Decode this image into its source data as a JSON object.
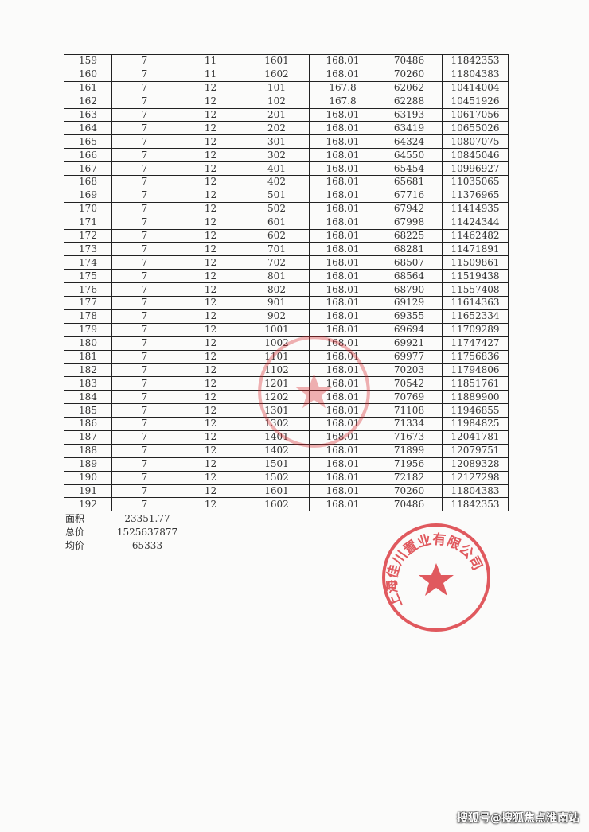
{
  "table": {
    "rows": [
      [
        "159",
        "7",
        "11",
        "1601",
        "168.01",
        "70486",
        "11842353"
      ],
      [
        "160",
        "7",
        "11",
        "1602",
        "168.01",
        "70260",
        "11804383"
      ],
      [
        "161",
        "7",
        "12",
        "101",
        "167.8",
        "62062",
        "10414004"
      ],
      [
        "162",
        "7",
        "12",
        "102",
        "167.8",
        "62288",
        "10451926"
      ],
      [
        "163",
        "7",
        "12",
        "201",
        "168.01",
        "63193",
        "10617056"
      ],
      [
        "164",
        "7",
        "12",
        "202",
        "168.01",
        "63419",
        "10655026"
      ],
      [
        "165",
        "7",
        "12",
        "301",
        "168.01",
        "64324",
        "10807075"
      ],
      [
        "166",
        "7",
        "12",
        "302",
        "168.01",
        "64550",
        "10845046"
      ],
      [
        "167",
        "7",
        "12",
        "401",
        "168.01",
        "65454",
        "10996927"
      ],
      [
        "168",
        "7",
        "12",
        "402",
        "168.01",
        "65681",
        "11035065"
      ],
      [
        "169",
        "7",
        "12",
        "501",
        "168.01",
        "67716",
        "11376965"
      ],
      [
        "170",
        "7",
        "12",
        "502",
        "168.01",
        "67942",
        "11414935"
      ],
      [
        "171",
        "7",
        "12",
        "601",
        "168.01",
        "67998",
        "11424344"
      ],
      [
        "172",
        "7",
        "12",
        "602",
        "168.01",
        "68225",
        "11462482"
      ],
      [
        "173",
        "7",
        "12",
        "701",
        "168.01",
        "68281",
        "11471891"
      ],
      [
        "174",
        "7",
        "12",
        "702",
        "168.01",
        "68507",
        "11509861"
      ],
      [
        "175",
        "7",
        "12",
        "801",
        "168.01",
        "68564",
        "11519438"
      ],
      [
        "176",
        "7",
        "12",
        "802",
        "168.01",
        "68790",
        "11557408"
      ],
      [
        "177",
        "7",
        "12",
        "901",
        "168.01",
        "69129",
        "11614363"
      ],
      [
        "178",
        "7",
        "12",
        "902",
        "168.01",
        "69355",
        "11652334"
      ],
      [
        "179",
        "7",
        "12",
        "1001",
        "168.01",
        "69694",
        "11709289"
      ],
      [
        "180",
        "7",
        "12",
        "1002",
        "168.01",
        "69921",
        "11747427"
      ],
      [
        "181",
        "7",
        "12",
        "1101",
        "168.01",
        "69977",
        "11756836"
      ],
      [
        "182",
        "7",
        "12",
        "1102",
        "168.01",
        "70203",
        "11794806"
      ],
      [
        "183",
        "7",
        "12",
        "1201",
        "168.01",
        "70542",
        "11851761"
      ],
      [
        "184",
        "7",
        "12",
        "1202",
        "168.01",
        "70769",
        "11889900"
      ],
      [
        "185",
        "7",
        "12",
        "1301",
        "168.01",
        "71108",
        "11946855"
      ],
      [
        "186",
        "7",
        "12",
        "1302",
        "168.01",
        "71334",
        "11984825"
      ],
      [
        "187",
        "7",
        "12",
        "1401",
        "168.01",
        "71673",
        "12041781"
      ],
      [
        "188",
        "7",
        "12",
        "1402",
        "168.01",
        "71899",
        "12079751"
      ],
      [
        "189",
        "7",
        "12",
        "1501",
        "168.01",
        "71956",
        "12089328"
      ],
      [
        "190",
        "7",
        "12",
        "1502",
        "168.01",
        "72182",
        "12127298"
      ],
      [
        "191",
        "7",
        "12",
        "1601",
        "168.01",
        "70260",
        "11804383"
      ],
      [
        "192",
        "7",
        "12",
        "1602",
        "168.01",
        "70486",
        "11842353"
      ]
    ]
  },
  "summary": {
    "area_label": "面积",
    "area_value": "23351.77",
    "total_label": "总价",
    "total_value": "1525637877",
    "avg_label": "均价",
    "avg_value": "65333"
  },
  "stamp": {
    "text": "上海佳川置业有限公司",
    "color": "#d8242a"
  },
  "watermark": "搜狐号@搜狐焦点淮南站"
}
